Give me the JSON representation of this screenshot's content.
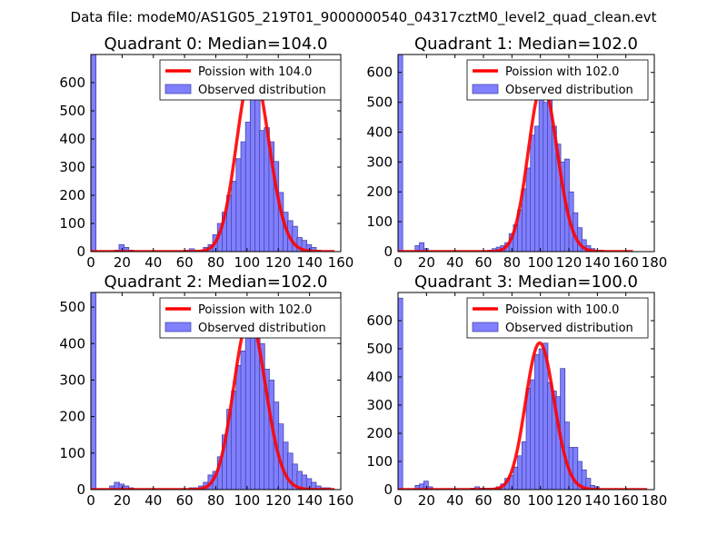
{
  "figure": {
    "suptitle": "Data file: modeM0/AS1G05_219T01_9000000540_04317cztM0_level2_quad_clean.evt"
  },
  "colors": {
    "bar_fill": "#8080ff",
    "bar_edge": "#3a3aa0",
    "poisson_line": "#ff0000",
    "axes": "#000000",
    "legend_edge": "#000000"
  },
  "chart_data": [
    {
      "type": "bar",
      "title": "Quadrant 0: Median=104.0",
      "xlim": [
        0,
        160
      ],
      "ylim": [
        0,
        700
      ],
      "xticks": [
        0,
        20,
        40,
        60,
        80,
        100,
        120,
        140,
        160
      ],
      "yticks": [
        0,
        100,
        200,
        300,
        400,
        500,
        600
      ],
      "bin_width": 3.3,
      "bins": [
        [
          0,
          700
        ],
        [
          15,
          5
        ],
        [
          18,
          25
        ],
        [
          21,
          15
        ],
        [
          24,
          5
        ],
        [
          60,
          5
        ],
        [
          63,
          10
        ],
        [
          66,
          5
        ],
        [
          69,
          5
        ],
        [
          72,
          15
        ],
        [
          75,
          25
        ],
        [
          78,
          60
        ],
        [
          81,
          100
        ],
        [
          84,
          140
        ],
        [
          87,
          200
        ],
        [
          90,
          250
        ],
        [
          93,
          330
        ],
        [
          96,
          390
        ],
        [
          99,
          460
        ],
        [
          102,
          540
        ],
        [
          105,
          650
        ],
        [
          108,
          430
        ],
        [
          111,
          440
        ],
        [
          114,
          390
        ],
        [
          117,
          320
        ],
        [
          120,
          210
        ],
        [
          123,
          140
        ],
        [
          126,
          110
        ],
        [
          129,
          90
        ],
        [
          132,
          50
        ],
        [
          135,
          40
        ],
        [
          138,
          25
        ],
        [
          141,
          15
        ],
        [
          144,
          5
        ]
      ],
      "poisson": {
        "lambda": 104.0,
        "xmin": 0,
        "xmax": 156
      },
      "legend": {
        "line_label": "Poission with 104.0",
        "bar_label": "Observed distribution",
        "loc": "upper right"
      }
    },
    {
      "type": "bar",
      "title": "Quadrant 1: Median=102.0",
      "xlim": [
        0,
        180
      ],
      "ylim": [
        0,
        660
      ],
      "xticks": [
        0,
        20,
        40,
        60,
        80,
        100,
        120,
        140,
        160,
        180
      ],
      "yticks": [
        0,
        100,
        200,
        300,
        400,
        500,
        600
      ],
      "bin_width": 3.3,
      "bins": [
        [
          0,
          660
        ],
        [
          12,
          20
        ],
        [
          15,
          30
        ],
        [
          18,
          10
        ],
        [
          63,
          5
        ],
        [
          66,
          10
        ],
        [
          69,
          15
        ],
        [
          72,
          20
        ],
        [
          75,
          30
        ],
        [
          78,
          60
        ],
        [
          81,
          90
        ],
        [
          84,
          140
        ],
        [
          87,
          210
        ],
        [
          90,
          280
        ],
        [
          93,
          390
        ],
        [
          96,
          420
        ],
        [
          99,
          520
        ],
        [
          102,
          500
        ],
        [
          105,
          560
        ],
        [
          108,
          420
        ],
        [
          111,
          360
        ],
        [
          114,
          300
        ],
        [
          117,
          310
        ],
        [
          120,
          200
        ],
        [
          123,
          130
        ],
        [
          126,
          80
        ],
        [
          129,
          40
        ],
        [
          132,
          20
        ],
        [
          135,
          10
        ],
        [
          138,
          5
        ],
        [
          141,
          5
        ]
      ],
      "poisson": {
        "lambda": 102.0,
        "xmin": 0,
        "xmax": 165
      },
      "legend": {
        "line_label": "Poission with 102.0",
        "bar_label": "Observed distribution",
        "loc": "upper right"
      }
    },
    {
      "type": "bar",
      "title": "Quadrant 2: Median=102.0",
      "xlim": [
        0,
        160
      ],
      "ylim": [
        0,
        540
      ],
      "xticks": [
        0,
        20,
        40,
        60,
        80,
        100,
        120,
        140,
        160
      ],
      "yticks": [
        0,
        100,
        200,
        300,
        400,
        500
      ],
      "bin_width": 3.3,
      "bins": [
        [
          0,
          540
        ],
        [
          12,
          10
        ],
        [
          15,
          20
        ],
        [
          18,
          15
        ],
        [
          21,
          10
        ],
        [
          24,
          5
        ],
        [
          63,
          5
        ],
        [
          66,
          5
        ],
        [
          69,
          10
        ],
        [
          72,
          20
        ],
        [
          75,
          40
        ],
        [
          78,
          50
        ],
        [
          81,
          90
        ],
        [
          84,
          150
        ],
        [
          87,
          220
        ],
        [
          90,
          270
        ],
        [
          93,
          340
        ],
        [
          96,
          380
        ],
        [
          99,
          420
        ],
        [
          102,
          430
        ],
        [
          105,
          470
        ],
        [
          108,
          400
        ],
        [
          111,
          330
        ],
        [
          114,
          300
        ],
        [
          117,
          240
        ],
        [
          120,
          180
        ],
        [
          123,
          130
        ],
        [
          126,
          100
        ],
        [
          129,
          70
        ],
        [
          132,
          50
        ],
        [
          135,
          40
        ],
        [
          138,
          30
        ],
        [
          141,
          20
        ],
        [
          144,
          10
        ],
        [
          147,
          5
        ],
        [
          150,
          5
        ]
      ],
      "poisson": {
        "lambda": 102.0,
        "xmin": 0,
        "xmax": 156
      },
      "legend": {
        "line_label": "Poission with 102.0",
        "bar_label": "Observed distribution",
        "loc": "upper right"
      }
    },
    {
      "type": "bar",
      "title": "Quadrant 3: Median=100.0",
      "xlim": [
        0,
        180
      ],
      "ylim": [
        0,
        700
      ],
      "xticks": [
        0,
        20,
        40,
        60,
        80,
        100,
        120,
        140,
        160,
        180
      ],
      "yticks": [
        0,
        100,
        200,
        300,
        400,
        500,
        600
      ],
      "bin_width": 3.3,
      "bins": [
        [
          0,
          680
        ],
        [
          12,
          15
        ],
        [
          15,
          20
        ],
        [
          18,
          30
        ],
        [
          21,
          10
        ],
        [
          51,
          5
        ],
        [
          54,
          10
        ],
        [
          57,
          5
        ],
        [
          60,
          5
        ],
        [
          63,
          5
        ],
        [
          66,
          5
        ],
        [
          69,
          10
        ],
        [
          72,
          20
        ],
        [
          75,
          40
        ],
        [
          78,
          50
        ],
        [
          81,
          80
        ],
        [
          84,
          120
        ],
        [
          87,
          170
        ],
        [
          90,
          360
        ],
        [
          93,
          390
        ],
        [
          96,
          480
        ],
        [
          99,
          500
        ],
        [
          102,
          520
        ],
        [
          105,
          380
        ],
        [
          108,
          350
        ],
        [
          111,
          330
        ],
        [
          114,
          430
        ],
        [
          117,
          240
        ],
        [
          120,
          150
        ],
        [
          123,
          150
        ],
        [
          126,
          100
        ],
        [
          129,
          70
        ],
        [
          132,
          40
        ],
        [
          135,
          15
        ],
        [
          138,
          10
        ]
      ],
      "poisson": {
        "lambda": 100.0,
        "xmin": 0,
        "xmax": 175
      },
      "legend": {
        "line_label": "Poission with 100.0",
        "bar_label": "Observed distribution",
        "loc": "upper right"
      }
    }
  ]
}
